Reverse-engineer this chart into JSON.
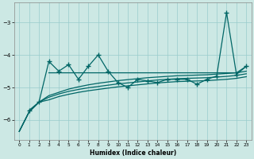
{
  "title": "",
  "xlabel": "Humidex (Indice chaleur)",
  "ylabel": "",
  "bg_color": "#cce8e4",
  "line_color": "#006666",
  "xlim": [
    -0.5,
    23.5
  ],
  "ylim": [
    -6.6,
    -2.4
  ],
  "yticks": [
    -6,
    -5,
    -4,
    -3
  ],
  "xticks": [
    0,
    1,
    2,
    3,
    4,
    5,
    6,
    7,
    8,
    9,
    10,
    11,
    12,
    13,
    14,
    15,
    16,
    17,
    18,
    19,
    20,
    21,
    22,
    23
  ],
  "x_jagged": [
    1,
    2,
    3,
    4,
    5,
    6,
    7,
    8,
    9,
    10,
    11,
    12,
    13,
    14,
    15,
    16,
    17,
    18,
    19,
    20,
    21,
    22,
    23
  ],
  "y_jagged": [
    -5.7,
    -5.45,
    -4.2,
    -4.5,
    -4.3,
    -4.75,
    -4.35,
    -4.0,
    -4.5,
    -4.85,
    -5.0,
    -4.75,
    -4.8,
    -4.85,
    -4.75,
    -4.75,
    -4.75,
    -4.9,
    -4.75,
    -4.65,
    -2.7,
    -4.6,
    -4.35
  ],
  "x_upper": [
    3,
    4,
    5,
    6,
    7,
    8,
    9,
    10,
    11,
    12,
    13,
    14,
    15,
    16,
    17,
    18,
    19,
    20,
    21,
    22,
    23
  ],
  "y_upper": [
    -4.55,
    -4.55,
    -4.55,
    -4.55,
    -4.55,
    -4.55,
    -4.55,
    -4.55,
    -4.55,
    -4.55,
    -4.55,
    -4.55,
    -4.55,
    -4.55,
    -4.55,
    -4.55,
    -4.55,
    -4.55,
    -4.55,
    -4.55,
    -4.35
  ],
  "x_smooth": [
    0,
    1,
    2,
    3,
    4,
    5,
    6,
    7,
    8,
    9,
    10,
    11,
    12,
    13,
    14,
    15,
    16,
    17,
    18,
    19,
    20,
    21,
    22,
    23
  ],
  "y_smooth1": [
    -6.35,
    -5.75,
    -5.45,
    -5.25,
    -5.15,
    -5.05,
    -4.98,
    -4.92,
    -4.87,
    -4.83,
    -4.79,
    -4.76,
    -4.73,
    -4.7,
    -4.68,
    -4.66,
    -4.64,
    -4.63,
    -4.62,
    -4.61,
    -4.59,
    -4.57,
    -4.55,
    -4.5
  ],
  "y_smooth2": [
    -6.35,
    -5.75,
    -5.45,
    -5.3,
    -5.2,
    -5.12,
    -5.06,
    -5.01,
    -4.97,
    -4.93,
    -4.89,
    -4.86,
    -4.83,
    -4.8,
    -4.77,
    -4.75,
    -4.73,
    -4.72,
    -4.71,
    -4.7,
    -4.68,
    -4.66,
    -4.63,
    -4.58
  ],
  "y_smooth3": [
    -6.35,
    -5.75,
    -5.45,
    -5.38,
    -5.28,
    -5.21,
    -5.15,
    -5.1,
    -5.06,
    -5.02,
    -4.98,
    -4.95,
    -4.92,
    -4.89,
    -4.86,
    -4.84,
    -4.82,
    -4.81,
    -4.8,
    -4.79,
    -4.77,
    -4.75,
    -4.72,
    -4.67
  ]
}
